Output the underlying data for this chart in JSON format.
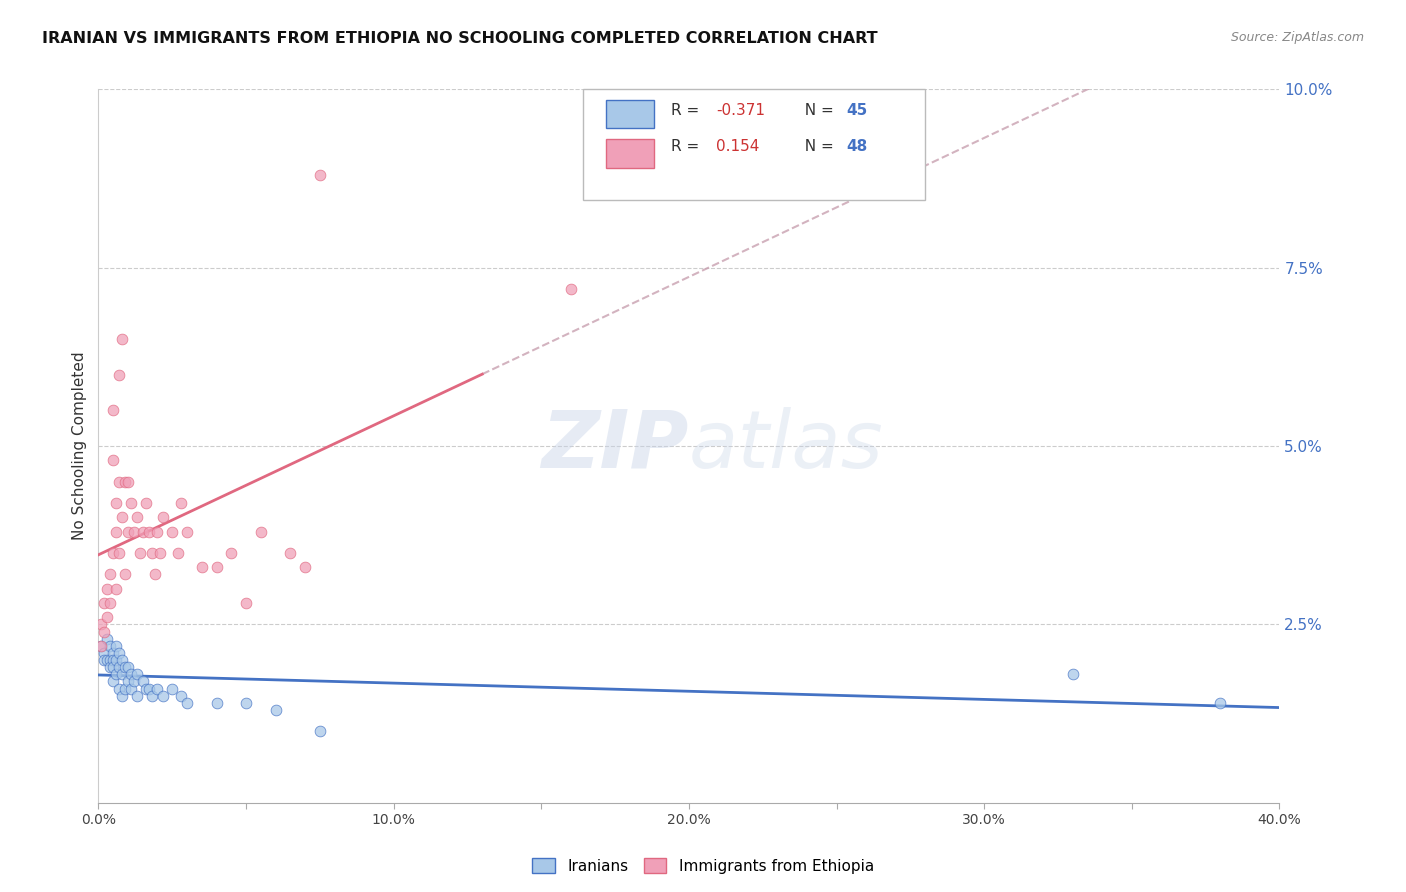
{
  "title": "IRANIAN VS IMMIGRANTS FROM ETHIOPIA NO SCHOOLING COMPLETED CORRELATION CHART",
  "source": "Source: ZipAtlas.com",
  "ylabel": "No Schooling Completed",
  "xlim": [
    0.0,
    0.4
  ],
  "ylim": [
    0.0,
    0.1
  ],
  "color_iranians": "#a8c8e8",
  "color_ethiopia": "#f0a0b8",
  "color_line_iranians": "#4472c4",
  "color_line_ethiopia": "#e06880",
  "color_dashed": "#c8a0b0",
  "bottom_legend_iranians": "Iranians",
  "bottom_legend_ethiopia": "Immigrants from Ethiopia",
  "iranians_x": [
    0.001,
    0.002,
    0.002,
    0.003,
    0.003,
    0.004,
    0.004,
    0.004,
    0.005,
    0.005,
    0.005,
    0.005,
    0.006,
    0.006,
    0.006,
    0.007,
    0.007,
    0.007,
    0.008,
    0.008,
    0.008,
    0.009,
    0.009,
    0.01,
    0.01,
    0.011,
    0.011,
    0.012,
    0.013,
    0.013,
    0.015,
    0.016,
    0.017,
    0.018,
    0.02,
    0.022,
    0.025,
    0.028,
    0.03,
    0.04,
    0.05,
    0.06,
    0.075,
    0.33,
    0.38
  ],
  "iranians_y": [
    0.022,
    0.021,
    0.02,
    0.023,
    0.02,
    0.022,
    0.02,
    0.019,
    0.021,
    0.02,
    0.019,
    0.017,
    0.022,
    0.02,
    0.018,
    0.021,
    0.019,
    0.016,
    0.02,
    0.018,
    0.015,
    0.019,
    0.016,
    0.019,
    0.017,
    0.018,
    0.016,
    0.017,
    0.018,
    0.015,
    0.017,
    0.016,
    0.016,
    0.015,
    0.016,
    0.015,
    0.016,
    0.015,
    0.014,
    0.014,
    0.014,
    0.013,
    0.01,
    0.018,
    0.014
  ],
  "ethiopia_x": [
    0.001,
    0.001,
    0.002,
    0.002,
    0.003,
    0.003,
    0.004,
    0.004,
    0.005,
    0.005,
    0.005,
    0.006,
    0.006,
    0.006,
    0.007,
    0.007,
    0.007,
    0.008,
    0.008,
    0.009,
    0.009,
    0.01,
    0.01,
    0.011,
    0.012,
    0.013,
    0.014,
    0.015,
    0.016,
    0.017,
    0.018,
    0.019,
    0.02,
    0.021,
    0.022,
    0.025,
    0.027,
    0.028,
    0.03,
    0.035,
    0.04,
    0.045,
    0.05,
    0.055,
    0.065,
    0.07,
    0.075,
    0.16
  ],
  "ethiopia_y": [
    0.025,
    0.022,
    0.028,
    0.024,
    0.03,
    0.026,
    0.032,
    0.028,
    0.055,
    0.048,
    0.035,
    0.042,
    0.038,
    0.03,
    0.06,
    0.045,
    0.035,
    0.065,
    0.04,
    0.045,
    0.032,
    0.045,
    0.038,
    0.042,
    0.038,
    0.04,
    0.035,
    0.038,
    0.042,
    0.038,
    0.035,
    0.032,
    0.038,
    0.035,
    0.04,
    0.038,
    0.035,
    0.042,
    0.038,
    0.033,
    0.033,
    0.035,
    0.028,
    0.038,
    0.035,
    0.033,
    0.088,
    0.072
  ]
}
